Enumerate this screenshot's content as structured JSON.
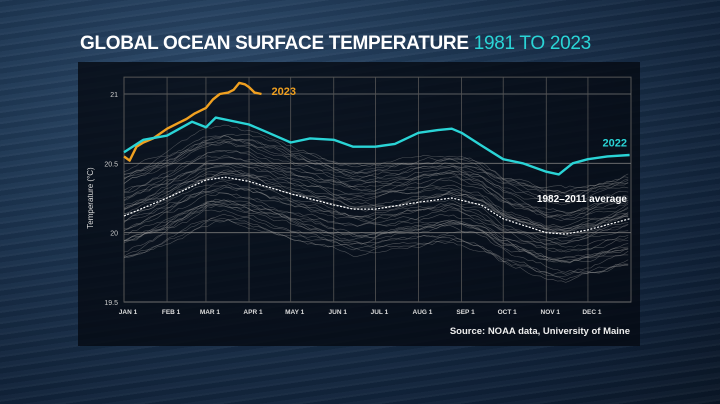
{
  "title": {
    "main": "GLOBAL OCEAN SURFACE TEMPERATURE",
    "highlight": "1981 TO 2023"
  },
  "source": "Source: NOAA data, University of Maine",
  "colors": {
    "y2023": "#f0a020",
    "y2022": "#2ad4d6",
    "average": "#ffffff",
    "other_years": "#9a9a9a",
    "title_highlight": "#2ad4d6"
  },
  "chart_data": {
    "type": "line",
    "ylabel": "Temperature (°C)",
    "ylim": [
      19.5,
      21.1
    ],
    "yticks": [
      19.5,
      20,
      20.5,
      21
    ],
    "ytick_labels": [
      "19.5",
      "20",
      "20.5",
      "21"
    ],
    "xtick_labels": [
      "JAN 1",
      "FEB 1",
      "MAR 1",
      "APR 1",
      "MAY 1",
      "JUN 1",
      "JUL 1",
      "AUG 1",
      "SEP 1",
      "OCT 1",
      "NOV 1",
      "DEC 1"
    ],
    "xticks_day_of_year": [
      1,
      32,
      60,
      91,
      121,
      152,
      182,
      213,
      244,
      274,
      305,
      335
    ],
    "grid": true,
    "series": [
      {
        "name": "2023",
        "color": "#f0a020",
        "day": [
          1,
          5,
          10,
          15,
          22,
          32,
          40,
          46,
          52,
          60,
          65,
          70,
          76,
          80,
          84,
          88,
          91,
          95,
          100
        ],
        "values": [
          20.55,
          20.52,
          20.62,
          20.65,
          20.68,
          20.75,
          20.79,
          20.82,
          20.86,
          20.9,
          20.96,
          21.0,
          21.01,
          21.03,
          21.08,
          21.07,
          21.05,
          21.01,
          21.0
        ]
      },
      {
        "name": "2022",
        "color": "#2ad4d6",
        "day": [
          1,
          15,
          32,
          50,
          60,
          67,
          91,
          105,
          121,
          135,
          152,
          166,
          182,
          196,
          213,
          227,
          237,
          244,
          258,
          274,
          288,
          305,
          314,
          324,
          335,
          349,
          365
        ],
        "values": [
          20.58,
          20.67,
          20.7,
          20.8,
          20.76,
          20.83,
          20.78,
          20.72,
          20.65,
          20.68,
          20.67,
          20.62,
          20.62,
          20.64,
          20.72,
          20.74,
          20.75,
          20.72,
          20.63,
          20.53,
          20.5,
          20.44,
          20.42,
          20.5,
          20.53,
          20.55,
          20.56
        ]
      },
      {
        "name": "1982–2011 average",
        "color": "#ffffff",
        "dashed": true,
        "day": [
          1,
          32,
          60,
          74,
          91,
          121,
          152,
          166,
          182,
          213,
          237,
          258,
          274,
          305,
          319,
          335,
          365
        ],
        "values": [
          20.12,
          20.25,
          20.38,
          20.4,
          20.37,
          20.28,
          20.2,
          20.17,
          20.17,
          20.22,
          20.25,
          20.2,
          20.1,
          20.0,
          19.99,
          20.02,
          20.1
        ]
      }
    ]
  }
}
